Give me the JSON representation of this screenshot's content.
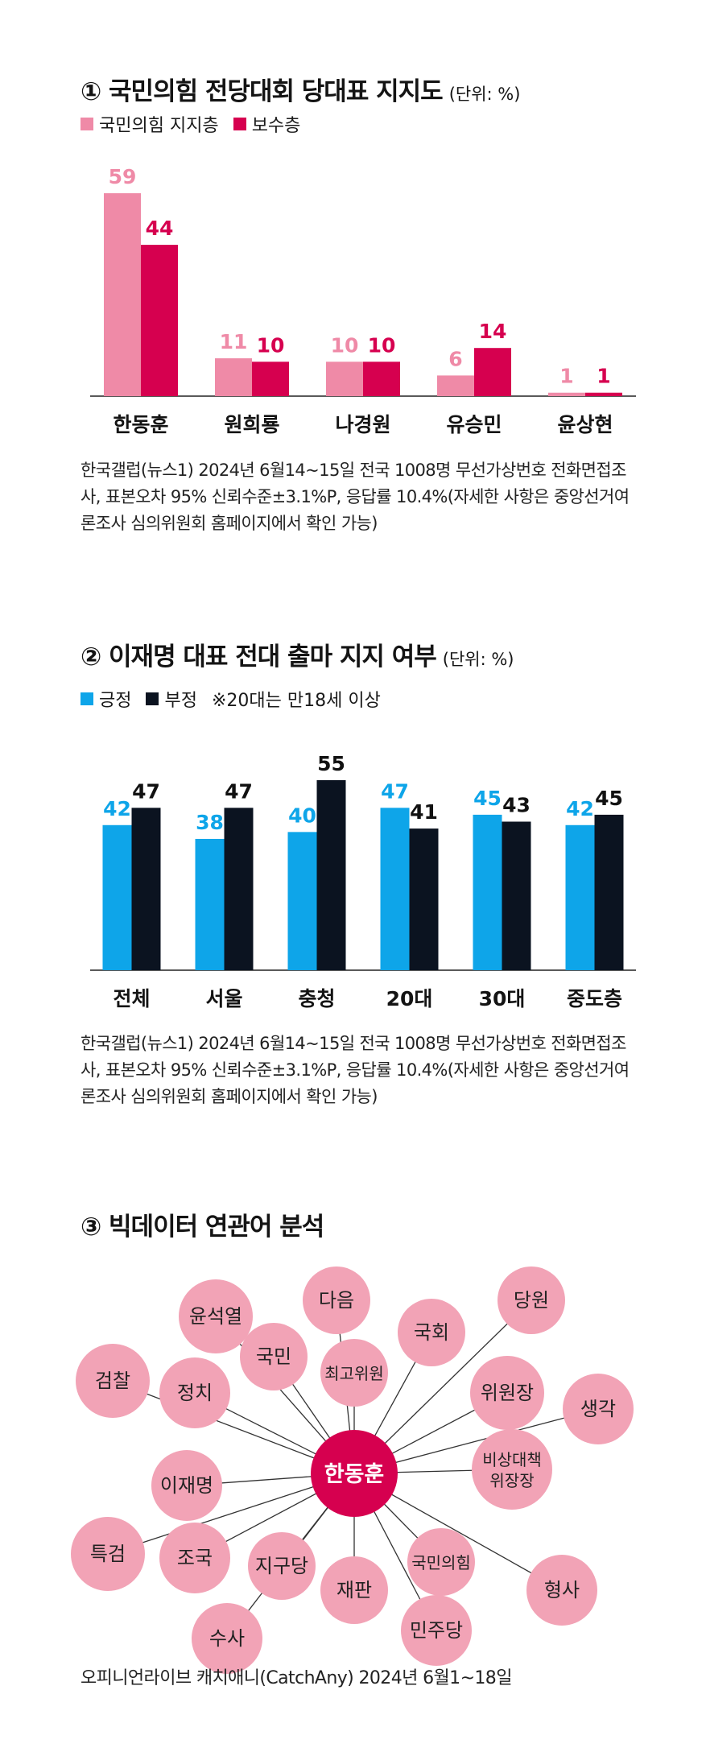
{
  "colors": {
    "pink_light": "#ef8aa7",
    "pink_dark": "#d6004f",
    "blue": "#0ea5e9",
    "black": "#0b1320",
    "bubble": "#f2a3b6",
    "center": "#d6004f"
  },
  "chart1": {
    "title": "① 국민의힘 전당대회 당대표 지지도",
    "unit": "(단위: %)",
    "source": "한국갤럽(뉴스1) 2024년 6월14~15일 전국 1008명 무선가상번호 전화면접조사, 표본오차 95% 신뢰수준±3.1%P, 응답률 10.4%(자세한 사항은 중앙선거여론조사 심의위원회 홈페이지에서 확인 가능)"
  },
  "chart2": {
    "title": "② 이재명 대표 전대 출마 지지 여부",
    "unit": "(단위: %)",
    "note": "※20대는 만18세 이상",
    "source": "한국갤럽(뉴스1) 2024년 6월14~15일 전국 1008명 무선가상번호 전화면접조사, 표본오차 95% 신뢰수준±3.1%P, 응답률 10.4%(자세한 사항은 중앙선거여론조사 심의위원회 홈페이지에서 확인 가능)"
  },
  "chart3": {
    "title": "③ 빅데이터 연관어 분석",
    "source": "오피니언라이브 캐치애니(CatchAny) 2024년 6월1~18일"
  },
  "chart_data": [
    {
      "type": "bar",
      "title": "① 국민의힘 전당대회 당대표 지지도",
      "unit": "(단위: %)",
      "categories": [
        "한동훈",
        "원희룡",
        "나경원",
        "유승민",
        "윤상현"
      ],
      "series": [
        {
          "name": "국민의힘 지지층",
          "values": [
            59,
            11,
            10,
            6,
            1
          ]
        },
        {
          "name": "보수층",
          "values": [
            44,
            10,
            10,
            14,
            1
          ]
        }
      ],
      "ylim": [
        0,
        59
      ],
      "legend": "top-left",
      "grid": false
    },
    {
      "type": "bar",
      "title": "② 이재명 대표 전대 출마 지지 여부",
      "unit": "(단위: %)",
      "categories": [
        "전체",
        "서울",
        "충청",
        "20대",
        "30대",
        "중도층"
      ],
      "series": [
        {
          "name": "긍정",
          "values": [
            42,
            38,
            40,
            47,
            45,
            42
          ]
        },
        {
          "name": "부정",
          "values": [
            47,
            47,
            55,
            41,
            43,
            45
          ]
        }
      ],
      "ylim": [
        0,
        55
      ],
      "legend": "top-left",
      "grid": false
    },
    {
      "type": "network",
      "title": "③ 빅데이터 연관어 분석",
      "center": "한동훈",
      "nodes": [
        "윤석열",
        "다음",
        "당원",
        "국회",
        "국민",
        "최고위원",
        "위원장",
        "생각",
        "검찰",
        "정치",
        "이재명",
        "비상대책 위장장",
        "특검",
        "조국",
        "지구당",
        "국민의힘",
        "형사",
        "수사",
        "재판",
        "민주당"
      ]
    }
  ]
}
